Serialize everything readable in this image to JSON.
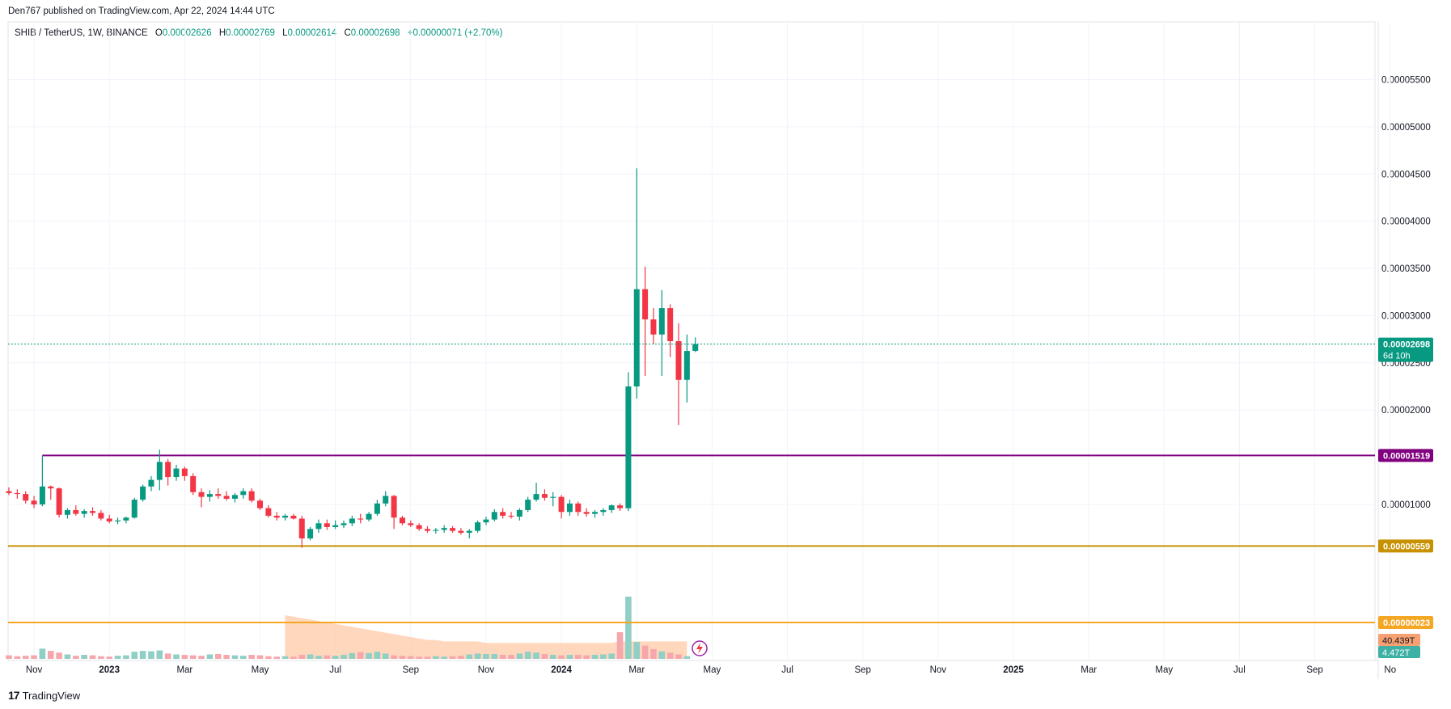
{
  "header": {
    "publisher_text": "Den767 published on TradingView.com, Apr 22, 2024 14:44 UTC"
  },
  "legend": {
    "symbol": "SHIB / TetherUS, 1W, BINANCE",
    "open_label": "O",
    "open": "0.00002626",
    "high_label": "H",
    "high": "0.00002769",
    "low_label": "L",
    "low": "0.00002614",
    "close_label": "C",
    "close": "0.00002698",
    "change": "+0.00000071 (+2.70%)"
  },
  "footer": {
    "brand": "TradingView"
  },
  "colors": {
    "up": "#089981",
    "down": "#f23645",
    "vol_up": "#8fcfc5",
    "vol_down": "#f5a7ad",
    "grid": "#f0f3fa",
    "price_line": "#089981",
    "resistance": "#800080",
    "support1": "#c79100",
    "support2": "#f5a623",
    "vol_ma": "#ffc9a6",
    "axis_text": "#131722"
  },
  "chart_data": {
    "type": "candlestick",
    "title": "SHIB / TetherUS, 1W, BINANCE",
    "y_axis": {
      "range": [
        3.4e-06,
        5.83e-05
      ],
      "tick_labels": [
        "0.00005500",
        "0.00005000",
        "0.00004500",
        "0.00004000",
        "0.00003500",
        "0.00003000",
        "0.00002500",
        "0.00002000",
        "0.00001000"
      ],
      "tick_values": [
        5.5e-05,
        5e-05,
        4.5e-05,
        4e-05,
        3.5e-05,
        3e-05,
        2.5e-05,
        2e-05,
        1e-05
      ]
    },
    "x_axis": {
      "tick_labels": [
        {
          "text": "Nov",
          "x": 3,
          "bold": false
        },
        {
          "text": "2023",
          "x": 12,
          "bold": true
        },
        {
          "text": "Mar",
          "x": 21,
          "bold": false
        },
        {
          "text": "May",
          "x": 30,
          "bold": false
        },
        {
          "text": "Jul",
          "x": 39,
          "bold": false
        },
        {
          "text": "Sep",
          "x": 48,
          "bold": false
        },
        {
          "text": "Nov",
          "x": 57,
          "bold": false
        },
        {
          "text": "2024",
          "x": 66,
          "bold": true
        },
        {
          "text": "Mar",
          "x": 75,
          "bold": false
        },
        {
          "text": "May",
          "x": 84,
          "bold": false
        },
        {
          "text": "Jul",
          "x": 93,
          "bold": false
        },
        {
          "text": "Sep",
          "x": 102,
          "bold": false
        },
        {
          "text": "Nov",
          "x": 111,
          "bold": false
        },
        {
          "text": "2025",
          "x": 120,
          "bold": true
        },
        {
          "text": "Mar",
          "x": 129,
          "bold": false
        },
        {
          "text": "May",
          "x": 138,
          "bold": false
        },
        {
          "text": "Jul",
          "x": 147,
          "bold": false
        },
        {
          "text": "Sep",
          "x": 156,
          "bold": false
        },
        {
          "text": "No",
          "x": 165,
          "bold": false
        }
      ]
    },
    "horizontal_lines": [
      {
        "value": 1.519e-05,
        "label": "0.00001519",
        "color": "#800080"
      },
      {
        "value": 5.59e-06,
        "label": "0.00000559",
        "color": "#c79100"
      },
      {
        "value": 2.3e-07,
        "label": "0.00000023",
        "color": "#f5a623",
        "pane": "volume"
      }
    ],
    "last_price": {
      "value": 2.698e-05,
      "label": "0.00002698",
      "countdown": "6d 10h"
    },
    "volume_labels": [
      {
        "text": "40.439T",
        "color": "#f7a072"
      },
      {
        "text": "4.472T",
        "color": "#3fb1a4"
      }
    ],
    "candles": [
      {
        "o": 1.14e-05,
        "h": 1.18e-05,
        "l": 1.1e-05,
        "c": 1.12e-05
      },
      {
        "o": 1.12e-05,
        "h": 1.16e-05,
        "l": 1.06e-05,
        "c": 1.11e-05
      },
      {
        "o": 1.11e-05,
        "h": 1.14e-05,
        "l": 1.01e-05,
        "c": 1.04e-05
      },
      {
        "o": 1.04e-05,
        "h": 1.09e-05,
        "l": 9.6e-06,
        "c": 1e-05
      },
      {
        "o": 1e-05,
        "h": 1.52e-05,
        "l": 9.8e-06,
        "c": 1.19e-05
      },
      {
        "o": 1.19e-05,
        "h": 1.2e-05,
        "l": 1.05e-05,
        "c": 1.17e-05
      },
      {
        "o": 1.17e-05,
        "h": 1.18e-05,
        "l": 8.6e-06,
        "c": 8.9e-06
      },
      {
        "o": 8.9e-06,
        "h": 9.6e-06,
        "l": 8.5e-06,
        "c": 9.4e-06
      },
      {
        "o": 9.4e-06,
        "h": 9.9e-06,
        "l": 8.8e-06,
        "c": 9e-06
      },
      {
        "o": 9e-06,
        "h": 9.5e-06,
        "l": 8.6e-06,
        "c": 9.3e-06
      },
      {
        "o": 9.3e-06,
        "h": 9.7e-06,
        "l": 8.8e-06,
        "c": 9.1e-06
      },
      {
        "o": 9.1e-06,
        "h": 9.4e-06,
        "l": 8.3e-06,
        "c": 8.5e-06
      },
      {
        "o": 8.5e-06,
        "h": 8.9e-06,
        "l": 8e-06,
        "c": 8.2e-06
      },
      {
        "o": 8.2e-06,
        "h": 8.6e-06,
        "l": 7.9e-06,
        "c": 8.3e-06
      },
      {
        "o": 8.3e-06,
        "h": 8.7e-06,
        "l": 8e-06,
        "c": 8.6e-06
      },
      {
        "o": 8.6e-06,
        "h": 1.07e-05,
        "l": 8.5e-06,
        "c": 1.05e-05
      },
      {
        "o": 1.05e-05,
        "h": 1.21e-05,
        "l": 1.03e-05,
        "c": 1.19e-05
      },
      {
        "o": 1.19e-05,
        "h": 1.3e-05,
        "l": 1.14e-05,
        "c": 1.26e-05
      },
      {
        "o": 1.26e-05,
        "h": 1.58e-05,
        "l": 1.15e-05,
        "c": 1.45e-05
      },
      {
        "o": 1.45e-05,
        "h": 1.48e-05,
        "l": 1.2e-05,
        "c": 1.29e-05
      },
      {
        "o": 1.29e-05,
        "h": 1.42e-05,
        "l": 1.25e-05,
        "c": 1.38e-05
      },
      {
        "o": 1.38e-05,
        "h": 1.4e-05,
        "l": 1.25e-05,
        "c": 1.3e-05
      },
      {
        "o": 1.3e-05,
        "h": 1.33e-05,
        "l": 1.1e-05,
        "c": 1.13e-05
      },
      {
        "o": 1.13e-05,
        "h": 1.17e-05,
        "l": 9.7e-06,
        "c": 1.08e-05
      },
      {
        "o": 1.08e-05,
        "h": 1.15e-05,
        "l": 1.03e-05,
        "c": 1.11e-05
      },
      {
        "o": 1.11e-05,
        "h": 1.17e-05,
        "l": 1.06e-05,
        "c": 1.09e-05
      },
      {
        "o": 1.09e-05,
        "h": 1.14e-05,
        "l": 1.04e-05,
        "c": 1.06e-05
      },
      {
        "o": 1.06e-05,
        "h": 1.12e-05,
        "l": 1.02e-05,
        "c": 1.1e-05
      },
      {
        "o": 1.1e-05,
        "h": 1.17e-05,
        "l": 1.06e-05,
        "c": 1.14e-05
      },
      {
        "o": 1.14e-05,
        "h": 1.17e-05,
        "l": 1.02e-05,
        "c": 1.04e-05
      },
      {
        "o": 1.04e-05,
        "h": 1.06e-05,
        "l": 9.4e-06,
        "c": 9.6e-06
      },
      {
        "o": 9.6e-06,
        "h": 9.9e-06,
        "l": 8.6e-06,
        "c": 8.8e-06
      },
      {
        "o": 8.8e-06,
        "h": 9.2e-06,
        "l": 8.3e-06,
        "c": 8.6e-06
      },
      {
        "o": 8.6e-06,
        "h": 9e-06,
        "l": 8.3e-06,
        "c": 8.8e-06
      },
      {
        "o": 8.8e-06,
        "h": 9e-06,
        "l": 8.4e-06,
        "c": 8.5e-06
      },
      {
        "o": 8.5e-06,
        "h": 8.8e-06,
        "l": 5.4e-06,
        "c": 6.4e-06
      },
      {
        "o": 6.4e-06,
        "h": 7.6e-06,
        "l": 6.2e-06,
        "c": 7.4e-06
      },
      {
        "o": 7.4e-06,
        "h": 8.4e-06,
        "l": 7e-06,
        "c": 8e-06
      },
      {
        "o": 8e-06,
        "h": 8.4e-06,
        "l": 7.3e-06,
        "c": 7.6e-06
      },
      {
        "o": 7.6e-06,
        "h": 8.3e-06,
        "l": 7.4e-06,
        "c": 7.8e-06
      },
      {
        "o": 7.8e-06,
        "h": 8.3e-06,
        "l": 7.5e-06,
        "c": 8e-06
      },
      {
        "o": 8e-06,
        "h": 8.8e-06,
        "l": 7.7e-06,
        "c": 8.5e-06
      },
      {
        "o": 8.5e-06,
        "h": 9e-06,
        "l": 8e-06,
        "c": 8.4e-06
      },
      {
        "o": 8.4e-06,
        "h": 9.2e-06,
        "l": 8.2e-06,
        "c": 9e-06
      },
      {
        "o": 9e-06,
        "h": 1.05e-05,
        "l": 8.8e-06,
        "c": 1.01e-05
      },
      {
        "o": 1.01e-05,
        "h": 1.14e-05,
        "l": 9.8e-06,
        "c": 1.09e-05
      },
      {
        "o": 1.09e-05,
        "h": 1.1e-05,
        "l": 7.4e-06,
        "c": 8.6e-06
      },
      {
        "o": 8.6e-06,
        "h": 8.8e-06,
        "l": 7.8e-06,
        "c": 8e-06
      },
      {
        "o": 8e-06,
        "h": 8.3e-06,
        "l": 7.6e-06,
        "c": 7.8e-06
      },
      {
        "o": 7.8e-06,
        "h": 8e-06,
        "l": 7.2e-06,
        "c": 7.4e-06
      },
      {
        "o": 7.4e-06,
        "h": 7.7e-06,
        "l": 7e-06,
        "c": 7.2e-06
      },
      {
        "o": 7.2e-06,
        "h": 7.5e-06,
        "l": 6.9e-06,
        "c": 7.3e-06
      },
      {
        "o": 7.3e-06,
        "h": 7.8e-06,
        "l": 7e-06,
        "c": 7.5e-06
      },
      {
        "o": 7.5e-06,
        "h": 7.7e-06,
        "l": 7e-06,
        "c": 7.2e-06
      },
      {
        "o": 7.2e-06,
        "h": 7.5e-06,
        "l": 6.8e-06,
        "c": 7e-06
      },
      {
        "o": 7e-06,
        "h": 7.4e-06,
        "l": 6.4e-06,
        "c": 7.2e-06
      },
      {
        "o": 7.2e-06,
        "h": 8.3e-06,
        "l": 7e-06,
        "c": 8.1e-06
      },
      {
        "o": 8.1e-06,
        "h": 8.7e-06,
        "l": 7.8e-06,
        "c": 8.4e-06
      },
      {
        "o": 8.4e-06,
        "h": 9.5e-06,
        "l": 8.2e-06,
        "c": 9.2e-06
      },
      {
        "o": 9.2e-06,
        "h": 9.6e-06,
        "l": 8.5e-06,
        "c": 8.8e-06
      },
      {
        "o": 8.8e-06,
        "h": 9.2e-06,
        "l": 8.5e-06,
        "c": 8.7e-06
      },
      {
        "o": 8.7e-06,
        "h": 9.6e-06,
        "l": 8.3e-06,
        "c": 9.4e-06
      },
      {
        "o": 9.4e-06,
        "h": 1.08e-05,
        "l": 9.2e-06,
        "c": 1.05e-05
      },
      {
        "o": 1.05e-05,
        "h": 1.23e-05,
        "l": 1.03e-05,
        "c": 1.11e-05
      },
      {
        "o": 1.11e-05,
        "h": 1.16e-05,
        "l": 1.04e-05,
        "c": 1.07e-05
      },
      {
        "o": 1.07e-05,
        "h": 1.13e-05,
        "l": 9.8e-06,
        "c": 1.08e-05
      },
      {
        "o": 1.08e-05,
        "h": 1.1e-05,
        "l": 8.5e-06,
        "c": 9.2e-06
      },
      {
        "o": 9.2e-06,
        "h": 1.05e-05,
        "l": 8.8e-06,
        "c": 1.01e-05
      },
      {
        "o": 1.01e-05,
        "h": 1.03e-05,
        "l": 8.8e-06,
        "c": 9.2e-06
      },
      {
        "o": 9.2e-06,
        "h": 9.6e-06,
        "l": 8.7e-06,
        "c": 9e-06
      },
      {
        "o": 9e-06,
        "h": 9.4e-06,
        "l": 8.6e-06,
        "c": 9.2e-06
      },
      {
        "o": 9.2e-06,
        "h": 9.6e-06,
        "l": 8.8e-06,
        "c": 9.4e-06
      },
      {
        "o": 9.4e-06,
        "h": 1e-05,
        "l": 9.1e-06,
        "c": 9.9e-06
      },
      {
        "o": 9.9e-06,
        "h": 1.01e-05,
        "l": 9.3e-06,
        "c": 9.6e-06
      },
      {
        "o": 9.6e-06,
        "h": 2.4e-05,
        "l": 9.3e-06,
        "c": 2.25e-05
      },
      {
        "o": 2.25e-05,
        "h": 4.56e-05,
        "l": 2.12e-05,
        "c": 3.28e-05
      },
      {
        "o": 3.28e-05,
        "h": 3.52e-05,
        "l": 2.36e-05,
        "c": 2.96e-05
      },
      {
        "o": 2.96e-05,
        "h": 3.08e-05,
        "l": 2.7e-05,
        "c": 2.8e-05
      },
      {
        "o": 2.8e-05,
        "h": 3.27e-05,
        "l": 2.36e-05,
        "c": 3.08e-05
      },
      {
        "o": 3.08e-05,
        "h": 3.12e-05,
        "l": 2.56e-05,
        "c": 2.73e-05
      },
      {
        "o": 2.73e-05,
        "h": 2.92e-05,
        "l": 1.84e-05,
        "c": 2.32e-05
      },
      {
        "o": 2.32e-05,
        "h": 2.8e-05,
        "l": 2.08e-05,
        "c": 2.626e-05
      },
      {
        "o": 2.626e-05,
        "h": 2.769e-05,
        "l": 2.614e-05,
        "c": 2.698e-05
      }
    ],
    "volumes": [
      8,
      6,
      7,
      8,
      23,
      18,
      14,
      10,
      7,
      9,
      8,
      6,
      5,
      7,
      8,
      16,
      18,
      17,
      19,
      12,
      10,
      9,
      8,
      7,
      10,
      11,
      9,
      8,
      7,
      9,
      8,
      6,
      5,
      6,
      5,
      9,
      10,
      7,
      8,
      7,
      9,
      13,
      15,
      13,
      16,
      12,
      8,
      7,
      6,
      5,
      5,
      6,
      5,
      6,
      7,
      10,
      12,
      11,
      11,
      9,
      9,
      12,
      16,
      14,
      11,
      9,
      8,
      9,
      9,
      8,
      9,
      10,
      12,
      60,
      140,
      38,
      30,
      22,
      17,
      14,
      10,
      6
    ],
    "volume_ma": [
      30,
      29,
      28,
      27,
      26,
      25,
      24,
      23,
      22,
      21,
      20,
      19,
      18,
      17,
      16,
      15,
      14,
      13,
      13,
      12,
      12,
      12,
      12,
      12,
      11,
      11,
      11,
      11,
      11,
      11,
      11,
      11,
      11,
      11,
      11,
      11,
      11,
      11,
      11,
      11,
      12,
      12,
      12,
      12,
      12,
      12,
      12,
      12,
      12
    ],
    "volume_ma_start": 33
  }
}
